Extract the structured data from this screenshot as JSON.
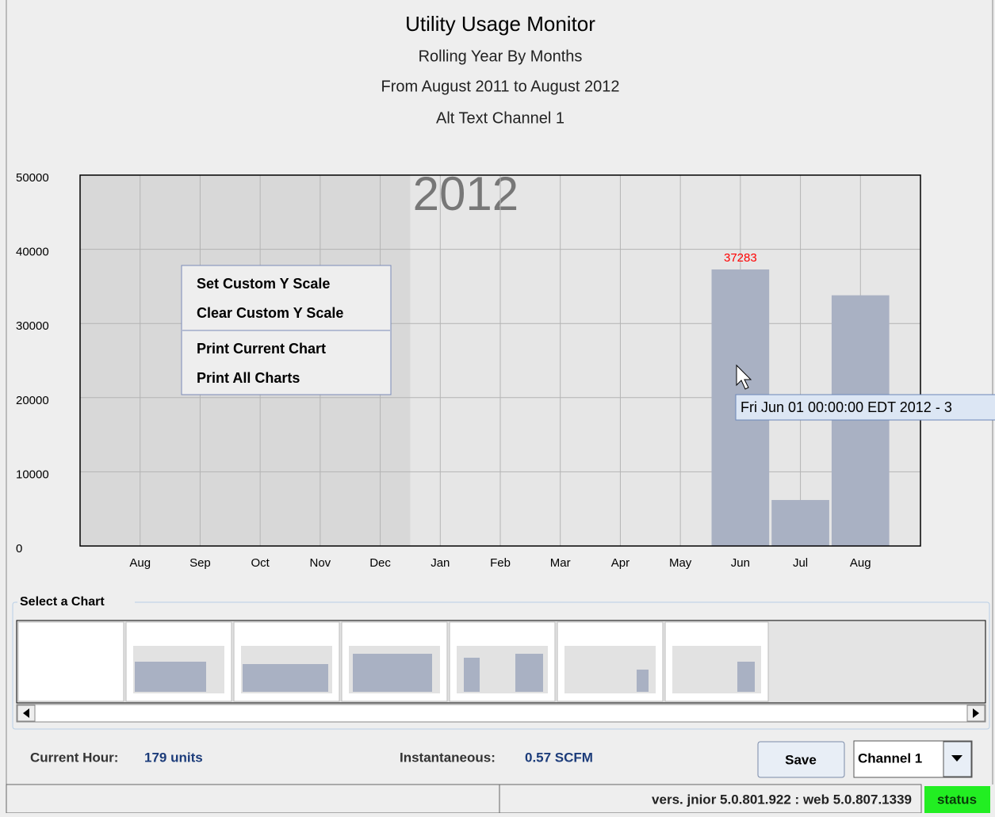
{
  "chart_data": {
    "type": "bar",
    "title": "Utility Usage Monitor",
    "subtitles": [
      "Rolling Year By Months",
      "From August 2011 to August 2012",
      "Alt Text Channel 1"
    ],
    "categories": [
      "Aug",
      "Sep",
      "Oct",
      "Nov",
      "Dec",
      "Jan",
      "Feb",
      "Mar",
      "Apr",
      "May",
      "Jun",
      "Jul",
      "Aug"
    ],
    "values": [
      null,
      null,
      null,
      null,
      null,
      null,
      null,
      null,
      null,
      null,
      37283,
      6200,
      33800
    ],
    "value_labels": [
      null,
      null,
      null,
      null,
      null,
      null,
      null,
      null,
      null,
      null,
      "37283",
      null,
      null
    ],
    "color": "#a9b1c3",
    "value_label_color": "#ff0000",
    "ylim": [
      0,
      50000
    ],
    "yticks": [
      0,
      10000,
      20000,
      30000,
      40000,
      50000
    ],
    "grid": true,
    "annotations": [
      {
        "text": "2012",
        "at": "Jan"
      }
    ]
  },
  "context_menu": {
    "items": [
      "Set Custom Y Scale",
      "Clear Custom Y Scale",
      "Print Current Chart",
      "Print All Charts"
    ]
  },
  "tooltip": "Fri Jun 01 00:00:00 EDT 2012 - 3",
  "selector": {
    "title": "Select a Chart"
  },
  "footer": {
    "current_hour_label": "Current Hour:",
    "current_hour_value": "179 units",
    "instantaneous_label": "Instantaneous:",
    "instantaneous_value": "0.57 SCFM",
    "save_button": "Save",
    "channel_select": "Channel 1"
  },
  "status_bar": {
    "version": "vers. jnior 5.0.801.922 : web 5.0.807.1339",
    "status": "status"
  }
}
